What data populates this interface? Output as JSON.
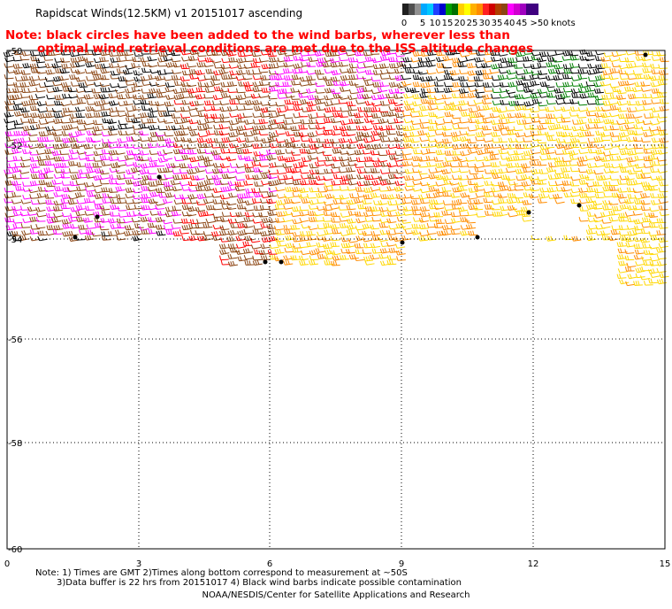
{
  "header": {
    "title": "Rapidscat Winds(12.5KM) v1 20151017 ascending",
    "note_line1": "Note: black circles have been added to the wind barbs, wherever less than",
    "note_line2": "optimal wind retrieval conditions are met due to the ISS altitude changes"
  },
  "legend": {
    "unit": "knots",
    "bins": [
      {
        "label": "0",
        "colors": [
          "#202020",
          "#505050",
          "#909090"
        ]
      },
      {
        "label": "5",
        "colors": [
          "#00a8ff",
          "#00c8ff"
        ]
      },
      {
        "label": "10",
        "colors": [
          "#2040ff",
          "#0000d0"
        ]
      },
      {
        "label": "15",
        "colors": [
          "#00a000",
          "#007000"
        ]
      },
      {
        "label": "20",
        "colors": [
          "#ffd000",
          "#ffff00"
        ]
      },
      {
        "label": "25",
        "colors": [
          "#ffb000",
          "#ff8c00"
        ]
      },
      {
        "label": "30",
        "colors": [
          "#ff2020",
          "#d00000"
        ]
      },
      {
        "label": "35",
        "colors": [
          "#b04000",
          "#8b4513"
        ]
      },
      {
        "label": "40",
        "colors": [
          "#ff00ff",
          "#d000d0"
        ]
      },
      {
        "label": "45",
        "colors": [
          "#a000c0",
          "#400080"
        ]
      },
      {
        "label": ">50",
        "colors": [
          "#400080"
        ]
      }
    ]
  },
  "map": {
    "lat_labels": [
      "-50",
      "-52",
      "-54",
      "-56",
      "-58",
      "-60"
    ],
    "lon_labels": [
      "0",
      "3",
      "6",
      "9",
      "12",
      "15"
    ],
    "lat_range": [
      -50,
      -60
    ],
    "lon_range": [
      0,
      15
    ],
    "grid": "dotted",
    "barb_colors": {
      "black": "#000000",
      "green": "#008000",
      "yellow": "#ffd700",
      "orange": "#ff8c00",
      "red": "#ff0000",
      "brown": "#8b4513",
      "magenta": "#ff00ff",
      "purple": "#a000c0"
    }
  },
  "footer": {
    "notes_line1": "Note: 1) Times are GMT 2)Times along bottom correspond to measurement at ~50S",
    "notes_line2": "3)Data buffer is 22 hrs from 20151017 4) Black wind barbs indicate possible contamination",
    "credit": "NOAA/NESDIS/Center for Satellite Applications and Research"
  }
}
